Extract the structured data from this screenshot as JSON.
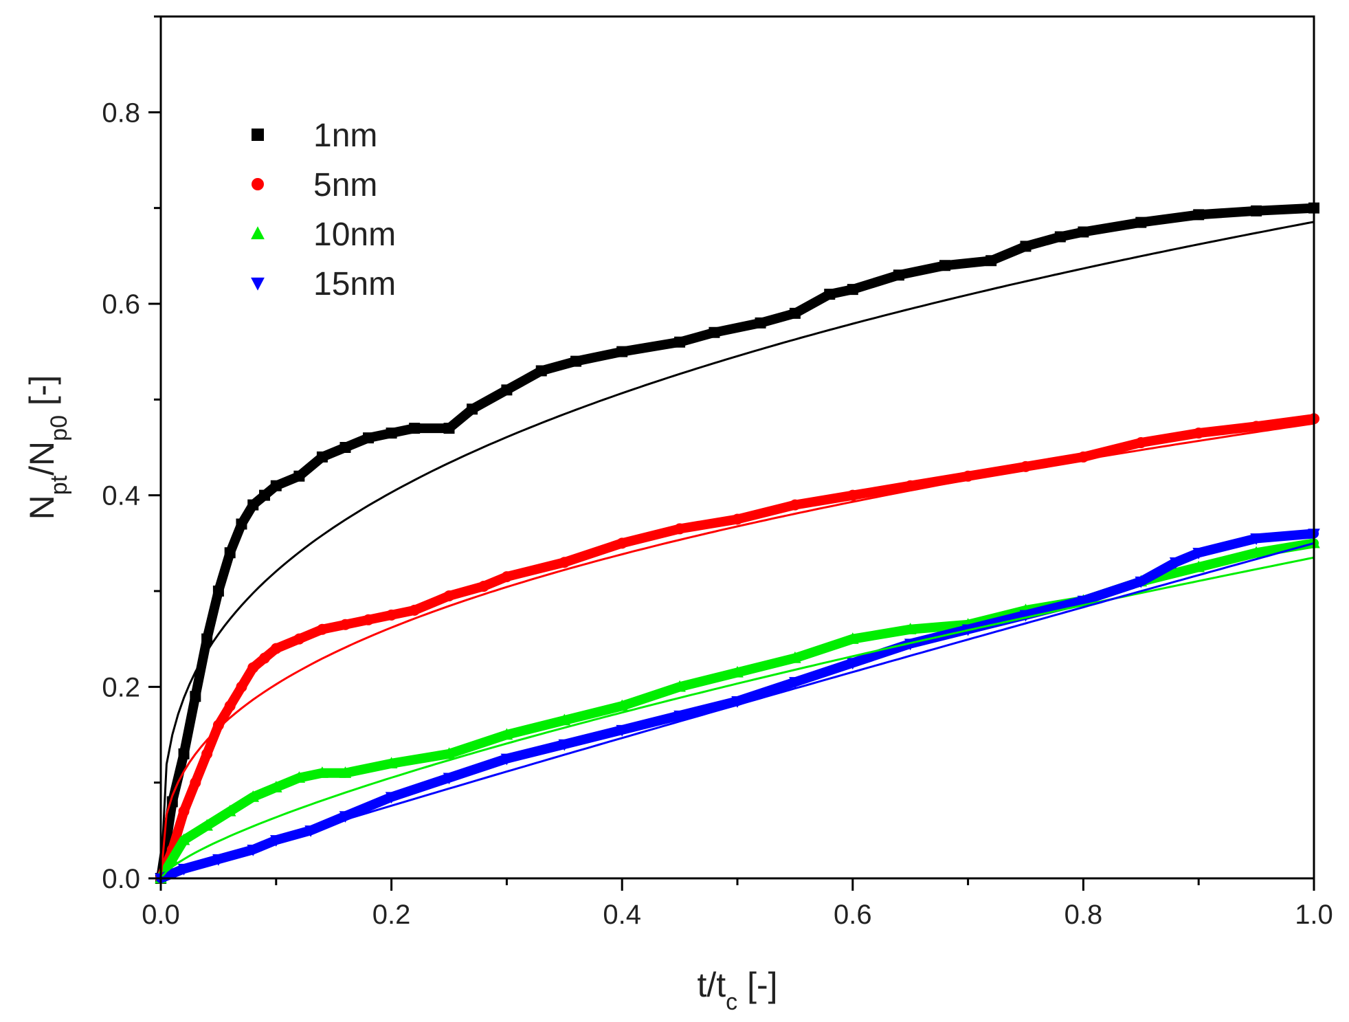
{
  "chart_data": {
    "type": "line",
    "title": "",
    "xlabel": {
      "main": "t/t",
      "sub": "c",
      "suffix": " [-]"
    },
    "ylabel": {
      "p1": "N",
      "s1": "pt",
      "p2": "/N",
      "s2": "p0",
      "suffix": " [-]"
    },
    "xlim": [
      0.0,
      1.0
    ],
    "ylim": [
      0.0,
      0.9
    ],
    "xticks": [
      0.0,
      0.2,
      0.4,
      0.6,
      0.8,
      1.0
    ],
    "xtick_labels": [
      "0.0",
      "0.2",
      "0.4",
      "0.6",
      "0.8",
      "1.0"
    ],
    "yticks": [
      0.0,
      0.2,
      0.4,
      0.6,
      0.8
    ],
    "ytick_labels": [
      "0.0",
      "0.2",
      "0.4",
      "0.6",
      "0.8"
    ],
    "grid": false,
    "legend_position": "top-left",
    "series": [
      {
        "name": "1nm",
        "color": "#000000",
        "marker": "square",
        "x": [
          0.0,
          0.01,
          0.02,
          0.03,
          0.04,
          0.05,
          0.06,
          0.07,
          0.08,
          0.09,
          0.1,
          0.12,
          0.14,
          0.16,
          0.18,
          0.2,
          0.22,
          0.25,
          0.27,
          0.3,
          0.33,
          0.36,
          0.4,
          0.45,
          0.48,
          0.52,
          0.55,
          0.58,
          0.6,
          0.64,
          0.68,
          0.72,
          0.75,
          0.78,
          0.8,
          0.85,
          0.9,
          0.95,
          1.0
        ],
        "y": [
          0.0,
          0.08,
          0.13,
          0.19,
          0.25,
          0.3,
          0.34,
          0.37,
          0.39,
          0.4,
          0.41,
          0.42,
          0.44,
          0.45,
          0.46,
          0.465,
          0.47,
          0.47,
          0.49,
          0.51,
          0.53,
          0.54,
          0.55,
          0.56,
          0.57,
          0.58,
          0.59,
          0.61,
          0.615,
          0.63,
          0.64,
          0.645,
          0.66,
          0.67,
          0.675,
          0.685,
          0.693,
          0.697,
          0.7
        ]
      },
      {
        "name": "5nm",
        "color": "#ff0000",
        "marker": "circle",
        "x": [
          0.0,
          0.01,
          0.02,
          0.03,
          0.04,
          0.05,
          0.06,
          0.07,
          0.08,
          0.09,
          0.1,
          0.12,
          0.14,
          0.16,
          0.18,
          0.2,
          0.22,
          0.25,
          0.28,
          0.3,
          0.35,
          0.4,
          0.45,
          0.5,
          0.55,
          0.6,
          0.65,
          0.7,
          0.75,
          0.8,
          0.85,
          0.9,
          0.95,
          1.0
        ],
        "y": [
          0.0,
          0.03,
          0.07,
          0.1,
          0.13,
          0.16,
          0.18,
          0.2,
          0.22,
          0.23,
          0.24,
          0.25,
          0.26,
          0.265,
          0.27,
          0.275,
          0.28,
          0.295,
          0.305,
          0.315,
          0.33,
          0.35,
          0.365,
          0.375,
          0.39,
          0.4,
          0.41,
          0.42,
          0.43,
          0.44,
          0.455,
          0.465,
          0.472,
          0.48
        ]
      },
      {
        "name": "10nm",
        "color": "#00ee00",
        "marker": "triangle-up",
        "x": [
          0.0,
          0.01,
          0.02,
          0.04,
          0.06,
          0.08,
          0.1,
          0.12,
          0.14,
          0.16,
          0.2,
          0.25,
          0.3,
          0.35,
          0.4,
          0.45,
          0.5,
          0.55,
          0.6,
          0.65,
          0.7,
          0.75,
          0.8,
          0.85,
          0.9,
          0.95,
          1.0
        ],
        "y": [
          0.0,
          0.02,
          0.04,
          0.055,
          0.07,
          0.085,
          0.095,
          0.105,
          0.11,
          0.11,
          0.12,
          0.13,
          0.15,
          0.165,
          0.18,
          0.2,
          0.215,
          0.23,
          0.25,
          0.26,
          0.265,
          0.28,
          0.29,
          0.31,
          0.325,
          0.34,
          0.35
        ]
      },
      {
        "name": "15nm",
        "color": "#0000ff",
        "marker": "triangle-down",
        "x": [
          0.0,
          0.02,
          0.05,
          0.08,
          0.1,
          0.13,
          0.16,
          0.2,
          0.25,
          0.3,
          0.35,
          0.4,
          0.45,
          0.5,
          0.55,
          0.6,
          0.65,
          0.7,
          0.75,
          0.8,
          0.85,
          0.88,
          0.9,
          0.95,
          1.0
        ],
        "y": [
          0.0,
          0.01,
          0.02,
          0.03,
          0.04,
          0.05,
          0.065,
          0.085,
          0.105,
          0.125,
          0.14,
          0.155,
          0.17,
          0.185,
          0.205,
          0.225,
          0.245,
          0.26,
          0.275,
          0.29,
          0.31,
          0.33,
          0.34,
          0.355,
          0.36
        ]
      }
    ],
    "fits": [
      {
        "name": "1nm fit",
        "color": "#000000",
        "a": 0.6855,
        "b": 0.33
      },
      {
        "name": "5nm fit",
        "color": "#ff0000",
        "a": 0.475,
        "b": 0.37
      },
      {
        "name": "10nm fit",
        "color": "#00ee00",
        "a": 0.335,
        "b": 0.72
      },
      {
        "name": "15nm fit",
        "color": "#0000ff",
        "a": 0.35,
        "b": 0.95
      }
    ]
  }
}
